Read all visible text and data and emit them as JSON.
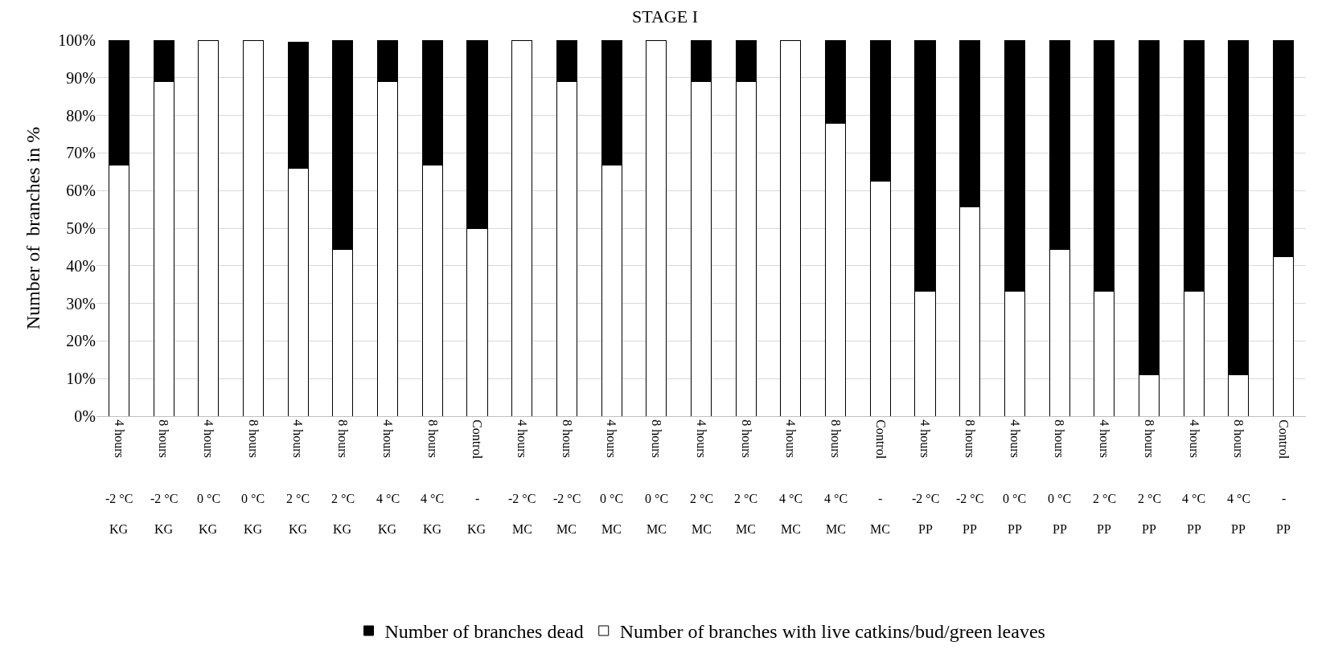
{
  "chart_data": {
    "type": "bar",
    "title": "STAGE I",
    "ylabel": "Number of  branches in %",
    "stacked": true,
    "categories": [
      "4 hours\n-2 °C\nKG",
      "8 hours\n-2 °C\nKG",
      "4 hours\n0 °C\nKG",
      "8 hours\n0 °C\nKG",
      "4 hours\n2 °C\nKG",
      "8 hours\n2 °C\nKG",
      "4 hours\n4 °C\nKG",
      "8 hours\n4 °C\nKG",
      "Control\n-\nKG",
      "4 hours\n-2 °C\nMC",
      "8 hours\n-2 °C\nMC",
      "4 hours\n0 °C\nMC",
      "8 hours\n0 °C\nMC",
      "4 hours\n2 °C\nMC",
      "8 hours\n2 °C\nMC",
      "4 hours\n4 °C\nMC",
      "8 hours\n4 °C\nMC",
      "Control\n-\nMC",
      "4 hours\n-2 °C\nPP",
      "8 hours\n-2 °C\nPP",
      "4 hours\n0 °C\nPP",
      "8 hours\n0 °C\nPP",
      "4 hours\n2 °C\nPP",
      "8 hours\n2 °C\nPP",
      "4 hours\n4 °C\nPP",
      "8 hours\n4 °C\nPP",
      "Control\n-\nPP"
    ],
    "series": [
      {
        "name": "Number of branches with live catkins/bud/green leaves",
        "color": "#ffffff",
        "values": [
          66.7,
          88.9,
          100,
          100,
          66,
          44.4,
          88.9,
          66.7,
          50,
          100,
          88.9,
          66.7,
          100,
          88.9,
          88.9,
          100,
          77.8,
          62.5,
          33.3,
          55.6,
          33.3,
          44.4,
          33.3,
          11.1,
          33.3,
          11.1,
          42.5
        ]
      },
      {
        "name": "Number of branches dead",
        "color": "#000000",
        "values": [
          33.3,
          11.1,
          0,
          0,
          33.5,
          55.6,
          11.1,
          33.3,
          50,
          0,
          11.1,
          33.3,
          0,
          11.1,
          11.1,
          0,
          22.2,
          37.5,
          66.7,
          44.4,
          66.7,
          55.6,
          66.7,
          88.9,
          66.7,
          88.9,
          57.5
        ]
      }
    ],
    "ylim": [
      0,
      100
    ],
    "yticks": [
      {
        "value": 0,
        "label": "0%"
      },
      {
        "value": 10,
        "label": "10%"
      },
      {
        "value": 20,
        "label": "20%"
      },
      {
        "value": 30,
        "label": "30%"
      },
      {
        "value": 40,
        "label": "40%"
      },
      {
        "value": 50,
        "label": "50%"
      },
      {
        "value": 60,
        "label": "60%"
      },
      {
        "value": 70,
        "label": "70%"
      },
      {
        "value": 80,
        "label": "80%"
      },
      {
        "value": 90,
        "label": "90%"
      },
      {
        "value": 100,
        "label": "100%"
      }
    ],
    "grid": "y",
    "legend": "bottom"
  }
}
